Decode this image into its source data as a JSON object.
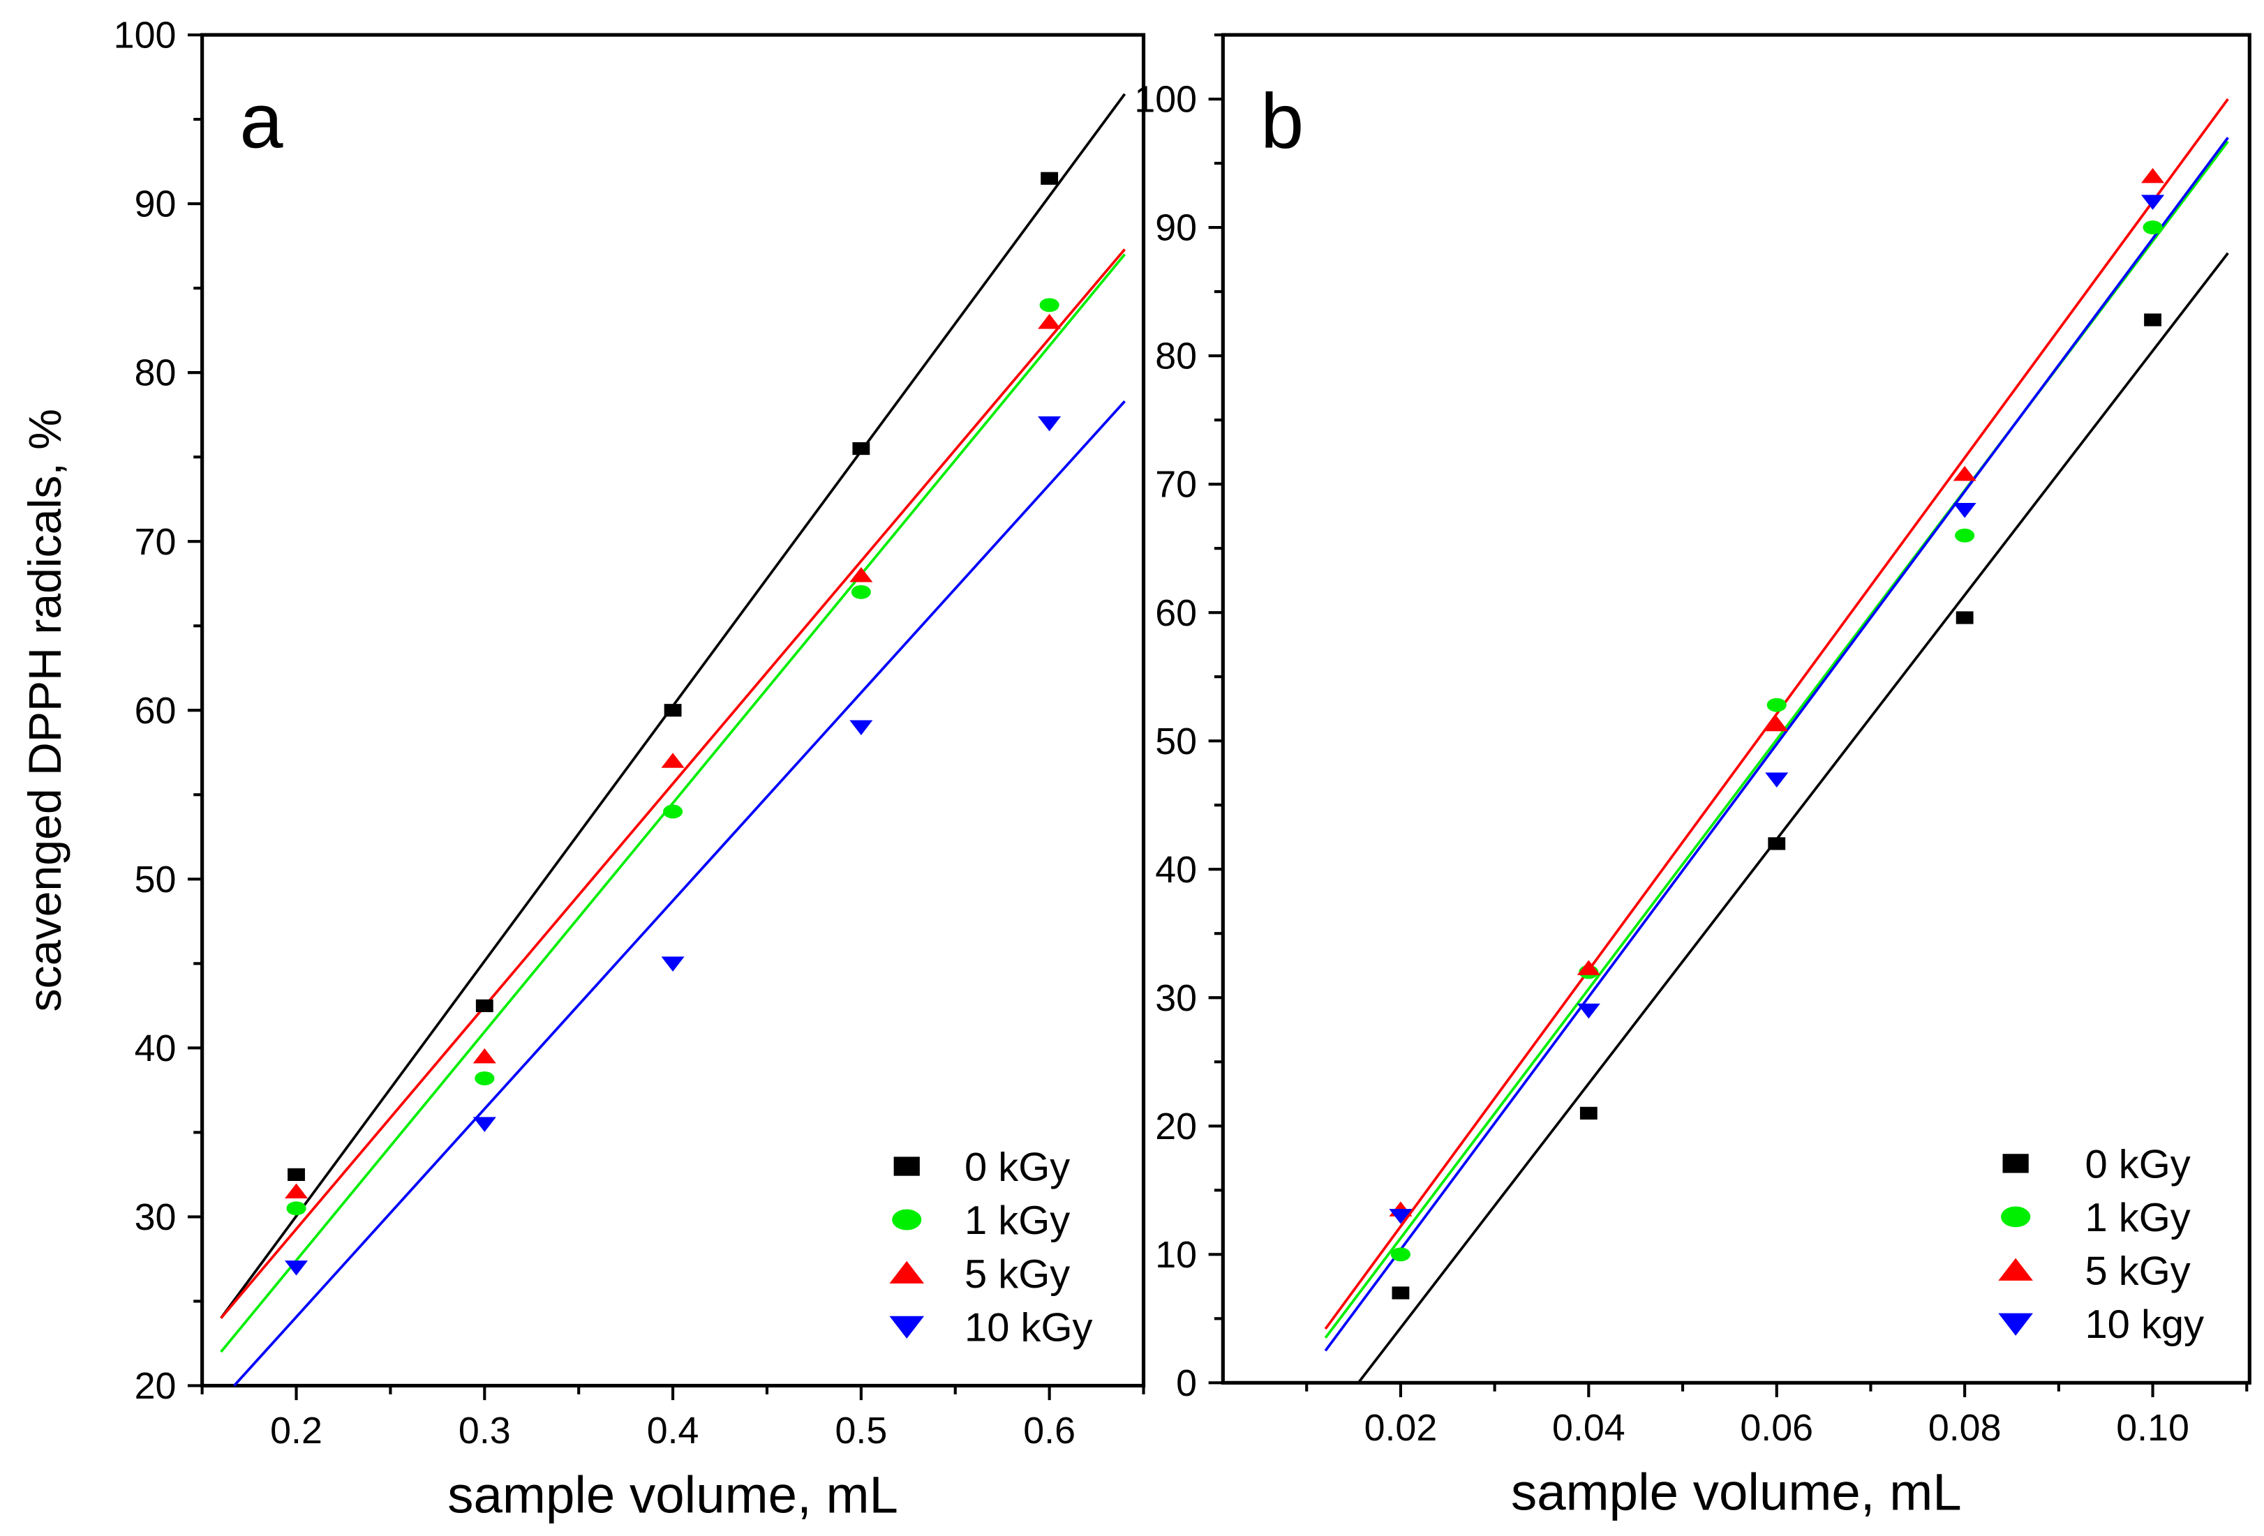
{
  "colors": {
    "0 kGy": "#000000",
    "1 kGy": "#00ee00",
    "5 kGy": "#ff0000",
    "10 kGy": "#0000ff"
  },
  "chart_data": [
    {
      "type": "scatter",
      "panel_label": "a",
      "xlabel": "sample volume, mL",
      "ylabel": "scavenged DPPH radicals, %",
      "xlim": [
        0.15,
        0.65
      ],
      "ylim": [
        20,
        100
      ],
      "xticks": [
        0.2,
        0.3,
        0.4,
        0.5,
        0.6
      ],
      "xtick_labels": [
        "0.2",
        "0.3",
        "0.4",
        "0.5",
        "0.6"
      ],
      "x_minor_step": 0.05,
      "yticks": [
        20,
        30,
        40,
        50,
        60,
        70,
        80,
        90,
        100
      ],
      "ytick_labels": [
        "20",
        "30",
        "40",
        "50",
        "60",
        "70",
        "80",
        "90",
        "100"
      ],
      "y_minor_step": 5,
      "legend_position": "bottom-right",
      "x": [
        0.2,
        0.3,
        0.4,
        0.5,
        0.6
      ],
      "series": [
        {
          "name": "0 kGy",
          "marker": "square",
          "color": "#000000",
          "values": [
            32.5,
            42.5,
            60,
            75.5,
            91.5
          ],
          "fit": [
            [
              0.16,
              24
            ],
            [
              0.64,
              96.5
            ]
          ]
        },
        {
          "name": "1 kGy",
          "marker": "circle",
          "color": "#00ee00",
          "values": [
            30.5,
            38.2,
            54,
            67,
            84
          ],
          "fit": [
            [
              0.16,
              22
            ],
            [
              0.64,
              87
            ]
          ]
        },
        {
          "name": "5 kGy",
          "marker": "triangle-up",
          "color": "#ff0000",
          "values": [
            31.5,
            39.5,
            57,
            68,
            83
          ],
          "fit": [
            [
              0.16,
              24
            ],
            [
              0.64,
              87.3
            ]
          ]
        },
        {
          "name": "10 kGy",
          "marker": "triangle-down",
          "color": "#0000ff",
          "values": [
            27,
            35.5,
            45,
            59,
            77
          ],
          "fit": [
            [
              0.167,
              20
            ],
            [
              0.64,
              78.3
            ]
          ]
        }
      ]
    },
    {
      "type": "scatter",
      "panel_label": "b",
      "xlabel": "sample volume, mL",
      "ylabel": "",
      "xlim": [
        0.0011,
        0.1103
      ],
      "ylim": [
        0,
        105
      ],
      "xticks": [
        0.02,
        0.04,
        0.06,
        0.08,
        0.1
      ],
      "xtick_labels": [
        "0.02",
        "0.04",
        "0.06",
        "0.08",
        "0.10"
      ],
      "x_minor_step": 0.01,
      "yticks": [
        0,
        10,
        20,
        30,
        40,
        50,
        60,
        70,
        80,
        90,
        100
      ],
      "ytick_labels": [
        "0",
        "10",
        "20",
        "30",
        "40",
        "50",
        "60",
        "70",
        "80",
        "90",
        "100"
      ],
      "y_minor_step": 5,
      "legend_position": "bottom-right",
      "x": [
        0.02,
        0.04,
        0.06,
        0.08,
        0.1
      ],
      "series": [
        {
          "name": "0 kGy",
          "marker": "square",
          "color": "#000000",
          "values": [
            7,
            21,
            42,
            59.6,
            82.8
          ],
          "fit": [
            [
              0.0155,
              0
            ],
            [
              0.108,
              88
            ]
          ]
        },
        {
          "name": "1 kGy",
          "marker": "circle",
          "color": "#00ee00",
          "values": [
            10,
            32,
            52.8,
            66,
            90
          ],
          "fit": [
            [
              0.012,
              3.5
            ],
            [
              0.108,
              96.7
            ]
          ]
        },
        {
          "name": "5 kGy",
          "marker": "triangle-up",
          "color": "#ff0000",
          "values": [
            13.5,
            32.3,
            51.3,
            70.8,
            94
          ],
          "fit": [
            [
              0.012,
              4.2
            ],
            [
              0.108,
              100
            ]
          ]
        },
        {
          "name": "10 kgy",
          "marker": "triangle-down",
          "color": "#0000ff",
          "values": [
            13,
            29,
            47,
            68,
            92
          ],
          "fit": [
            [
              0.012,
              2.5
            ],
            [
              0.108,
              97
            ]
          ]
        }
      ]
    }
  ]
}
